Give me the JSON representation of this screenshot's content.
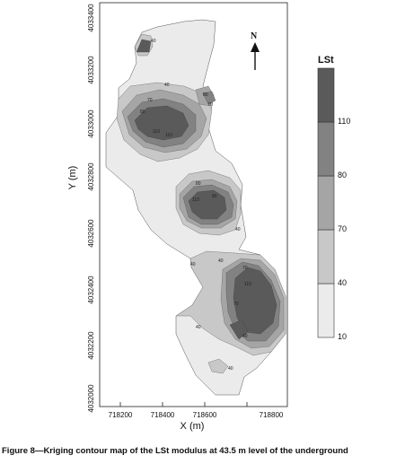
{
  "caption": "Figure 8—Kriging contour map of the LSt modulus at 43.5 m level of the underground",
  "map": {
    "x_axis": {
      "label": "X (m)",
      "ticks": [
        "718200",
        "718400",
        "718600",
        "718800"
      ]
    },
    "y_axis": {
      "label": "Y (m)",
      "ticks": [
        "4032000",
        "4032200",
        "4032400",
        "4032600",
        "4032800",
        "4033000",
        "4033200",
        "4033400"
      ]
    },
    "north_label": "N",
    "contour_labels": [
      "40",
      "40",
      "70",
      "70",
      "80",
      "80",
      "110",
      "110",
      "80",
      "110",
      "80",
      "40",
      "40",
      "40",
      "70",
      "110",
      "70",
      "40",
      "40",
      "40"
    ]
  },
  "legend": {
    "title": "LSt",
    "classes": [
      {
        "min": 10,
        "max": 40,
        "color": "#ebebeb"
      },
      {
        "min": 40,
        "max": 70,
        "color": "#c8c8c8"
      },
      {
        "min": 70,
        "max": 80,
        "color": "#a5a5a5"
      },
      {
        "min": 80,
        "max": 110,
        "color": "#828282"
      },
      {
        "min": 110,
        "max": 140,
        "color": "#5a5a5a"
      }
    ],
    "tick_labels": [
      "10",
      "40",
      "70",
      "80",
      "110"
    ]
  }
}
